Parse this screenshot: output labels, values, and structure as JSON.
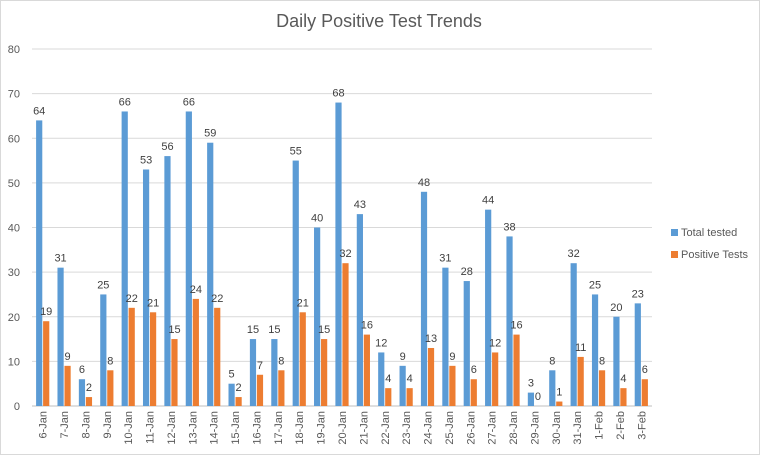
{
  "chart_data": {
    "type": "bar",
    "title": "Daily Positive Test Trends",
    "xlabel": "",
    "ylabel": "",
    "ylim": [
      0,
      80
    ],
    "yticks": [
      0,
      10,
      20,
      30,
      40,
      50,
      60,
      70,
      80
    ],
    "grid": true,
    "legend_position": "right",
    "categories": [
      "6-Jan",
      "7-Jan",
      "8-Jan",
      "9-Jan",
      "10-Jan",
      "11-Jan",
      "12-Jan",
      "13-Jan",
      "14-Jan",
      "15-Jan",
      "16-Jan",
      "17-Jan",
      "18-Jan",
      "19-Jan",
      "20-Jan",
      "21-Jan",
      "22-Jan",
      "23-Jan",
      "24-Jan",
      "25-Jan",
      "26-Jan",
      "27-Jan",
      "28-Jan",
      "29-Jan",
      "30-Jan",
      "31-Jan",
      "1-Feb",
      "2-Feb",
      "3-Feb"
    ],
    "series": [
      {
        "name": "Total tested",
        "color": "#5b9bd5",
        "values": [
          64,
          31,
          6,
          25,
          66,
          53,
          56,
          66,
          59,
          5,
          15,
          15,
          55,
          40,
          68,
          43,
          12,
          9,
          48,
          31,
          28,
          44,
          38,
          3,
          8,
          32,
          25,
          20,
          23
        ]
      },
      {
        "name": "Positive Tests",
        "color": "#ed7d31",
        "values": [
          19,
          9,
          2,
          8,
          22,
          21,
          15,
          24,
          22,
          2,
          7,
          8,
          21,
          15,
          32,
          16,
          4,
          4,
          13,
          9,
          6,
          12,
          16,
          0,
          1,
          11,
          8,
          4,
          6
        ]
      }
    ]
  }
}
